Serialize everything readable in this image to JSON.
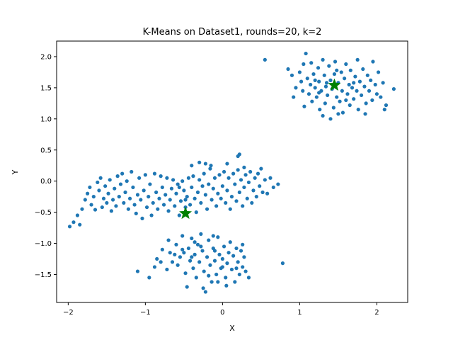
{
  "chart_data": {
    "type": "scatter",
    "title": "K-Means on Dataset1, rounds=20, k=2",
    "xlabel": "X",
    "ylabel": "Y",
    "xlim": [
      -2.15,
      2.4
    ],
    "ylim": [
      -1.95,
      2.25
    ],
    "xticks": [
      -2,
      -1,
      0,
      1,
      2
    ],
    "yticks": [
      -1.5,
      -1.0,
      -0.5,
      0.0,
      0.5,
      1.0,
      1.5,
      2.0
    ],
    "xtick_labels": [
      "−2",
      "−1",
      "0",
      "1",
      "2"
    ],
    "ytick_labels": [
      "−1.5",
      "−1.0",
      "−0.5",
      "0.0",
      "0.5",
      "1.0",
      "1.5",
      "2.0"
    ],
    "grid": false,
    "series": [
      {
        "marker": "dot",
        "color": "#1f77b4",
        "points": [
          [
            -1.98,
            -0.73
          ],
          [
            -1.93,
            -0.66
          ],
          [
            -1.88,
            -0.55
          ],
          [
            -1.85,
            -0.7
          ],
          [
            -1.82,
            -0.45
          ],
          [
            -1.78,
            -0.3
          ],
          [
            -1.75,
            -0.2
          ],
          [
            -1.72,
            -0.1
          ],
          [
            -1.7,
            -0.38
          ],
          [
            -1.67,
            -0.25
          ],
          [
            -1.65,
            -0.46
          ],
          [
            -1.62,
            -0.02
          ],
          [
            -1.6,
            -0.15
          ],
          [
            -1.58,
            0.05
          ],
          [
            -1.56,
            -0.42
          ],
          [
            -1.54,
            -0.28
          ],
          [
            -1.52,
            -0.08
          ],
          [
            -1.5,
            -0.35
          ],
          [
            -1.48,
            -0.2
          ],
          [
            -1.46,
            0.02
          ],
          [
            -1.44,
            -0.48
          ],
          [
            -1.42,
            -0.3
          ],
          [
            -1.4,
            -0.12
          ],
          [
            -1.38,
            -0.4
          ],
          [
            -1.36,
            0.08
          ],
          [
            -1.34,
            -0.25
          ],
          [
            -1.32,
            -0.05
          ],
          [
            -1.3,
            0.12
          ],
          [
            -1.28,
            -0.35
          ],
          [
            -1.26,
            -0.18
          ],
          [
            -1.24,
            0.0
          ],
          [
            -1.22,
            -0.45
          ],
          [
            -1.2,
            -0.28
          ],
          [
            -1.18,
            0.15
          ],
          [
            -1.16,
            -0.1
          ],
          [
            -1.14,
            -0.38
          ],
          [
            -1.12,
            -0.52
          ],
          [
            -1.1,
            -0.22
          ],
          [
            -1.08,
            0.05
          ],
          [
            -1.06,
            -0.3
          ],
          [
            -1.04,
            -0.6
          ],
          [
            -1.02,
            -0.15
          ],
          [
            -1.0,
            0.1
          ],
          [
            -0.98,
            -0.42
          ],
          [
            -0.96,
            -0.25
          ],
          [
            -0.94,
            -0.05
          ],
          [
            -0.92,
            -0.55
          ],
          [
            -0.9,
            -0.35
          ],
          [
            -0.88,
            0.12
          ],
          [
            -0.86,
            -0.18
          ],
          [
            -0.84,
            -0.45
          ],
          [
            -0.82,
            -0.28
          ],
          [
            -0.8,
            0.08
          ],
          [
            -0.78,
            -0.1
          ],
          [
            -0.76,
            -0.38
          ],
          [
            -0.74,
            -0.22
          ],
          [
            -0.72,
            0.05
          ],
          [
            -0.7,
            -0.48
          ],
          [
            -0.68,
            -0.3
          ],
          [
            -0.66,
            -0.12
          ],
          [
            -0.64,
            0.02
          ],
          [
            -0.62,
            -0.4
          ],
          [
            -0.6,
            -0.2
          ],
          [
            -0.58,
            -0.05
          ],
          [
            -0.56,
            -0.55
          ],
          [
            -0.54,
            -0.32
          ],
          [
            -0.52,
            0.0
          ],
          [
            -0.5,
            -0.15
          ],
          [
            -0.48,
            -0.42
          ],
          [
            -0.46,
            -0.25
          ],
          [
            -0.44,
            0.05
          ],
          [
            -0.42,
            -0.38
          ],
          [
            -0.4,
            -0.1
          ],
          [
            -0.38,
            0.08
          ],
          [
            -0.36,
            -0.28
          ],
          [
            -0.34,
            -0.5
          ],
          [
            -0.32,
            -0.18
          ],
          [
            -0.3,
            0.02
          ],
          [
            -0.28,
            -0.35
          ],
          [
            -0.26,
            -0.08
          ],
          [
            -0.24,
            0.12
          ],
          [
            -0.22,
            -0.22
          ],
          [
            -0.2,
            -0.45
          ],
          [
            -0.18,
            -0.05
          ],
          [
            -0.16,
            0.2
          ],
          [
            -0.14,
            -0.3
          ],
          [
            -0.12,
            -0.12
          ],
          [
            -0.1,
            0.05
          ],
          [
            -0.08,
            -0.4
          ],
          [
            -0.06,
            -0.2
          ],
          [
            -0.04,
            0.1
          ],
          [
            -0.02,
            -0.28
          ],
          [
            0.0,
            -0.08
          ],
          [
            0.02,
            0.15
          ],
          [
            0.04,
            -0.35
          ],
          [
            0.06,
            -0.15
          ],
          [
            0.08,
            0.05
          ],
          [
            0.1,
            -0.45
          ],
          [
            0.12,
            -0.25
          ],
          [
            0.14,
            0.12
          ],
          [
            0.16,
            -0.05
          ],
          [
            0.18,
            -0.32
          ],
          [
            0.2,
            0.18
          ],
          [
            0.22,
            -0.18
          ],
          [
            0.24,
            0.02
          ],
          [
            0.26,
            -0.4
          ],
          [
            0.28,
            -0.1
          ],
          [
            0.3,
            0.1
          ],
          [
            0.32,
            -0.28
          ],
          [
            0.34,
            -0.02
          ],
          [
            0.36,
            0.15
          ],
          [
            0.38,
            -0.35
          ],
          [
            0.4,
            -0.15
          ],
          [
            0.42,
            0.05
          ],
          [
            0.44,
            -0.25
          ],
          [
            0.46,
            0.12
          ],
          [
            0.48,
            -0.08
          ],
          [
            0.5,
            0.2
          ],
          [
            0.52,
            -0.18
          ],
          [
            0.55,
            0.02
          ],
          [
            0.58,
            -0.2
          ],
          [
            0.62,
            0.05
          ],
          [
            0.66,
            -0.1
          ],
          [
            0.72,
            -0.05
          ],
          [
            0.78,
            -1.32
          ],
          [
            -0.3,
            0.3
          ],
          [
            -0.22,
            0.28
          ],
          [
            -0.15,
            0.25
          ],
          [
            0.2,
            0.4
          ],
          [
            0.22,
            0.43
          ],
          [
            -0.4,
            0.25
          ],
          [
            0.06,
            0.28
          ],
          [
            0.28,
            0.22
          ],
          [
            -0.48,
            -0.3
          ],
          [
            -0.56,
            -0.1
          ],
          [
            -1.1,
            -1.45
          ],
          [
            -0.95,
            -1.55
          ],
          [
            -0.88,
            -1.38
          ],
          [
            -0.85,
            -1.25
          ],
          [
            -0.78,
            -1.1
          ],
          [
            -0.72,
            -1.42
          ],
          [
            -0.7,
            -0.95
          ],
          [
            -0.65,
            -1.3
          ],
          [
            -0.62,
            -1.18
          ],
          [
            -0.6,
            -1.02
          ],
          [
            -0.58,
            -1.35
          ],
          [
            -0.55,
            -1.22
          ],
          [
            -0.52,
            -0.88
          ],
          [
            -0.5,
            -1.15
          ],
          [
            -0.48,
            -1.48
          ],
          [
            -0.46,
            -1.7
          ],
          [
            -0.44,
            -1.08
          ],
          [
            -0.42,
            -1.28
          ],
          [
            -0.4,
            -0.92
          ],
          [
            -0.38,
            -1.4
          ],
          [
            -0.36,
            -1.18
          ],
          [
            -0.34,
            -1.55
          ],
          [
            -0.32,
            -1.02
          ],
          [
            -0.3,
            -1.3
          ],
          [
            -0.28,
            -0.85
          ],
          [
            -0.26,
            -1.12
          ],
          [
            -0.24,
            -1.45
          ],
          [
            -0.22,
            -1.78
          ],
          [
            -0.2,
            -1.22
          ],
          [
            -0.18,
            -0.95
          ],
          [
            -0.16,
            -1.35
          ],
          [
            -0.14,
            -1.62
          ],
          [
            -0.12,
            -1.08
          ],
          [
            -0.1,
            -1.28
          ],
          [
            -0.08,
            -1.5
          ],
          [
            -0.06,
            -0.9
          ],
          [
            -0.04,
            -1.18
          ],
          [
            -0.02,
            -1.4
          ],
          [
            0.0,
            -1.25
          ],
          [
            0.02,
            -1.05
          ],
          [
            0.04,
            -1.55
          ],
          [
            0.06,
            -1.32
          ],
          [
            0.08,
            -1.15
          ],
          [
            0.1,
            -0.98
          ],
          [
            0.12,
            -1.42
          ],
          [
            0.14,
            -1.2
          ],
          [
            0.16,
            -1.62
          ],
          [
            0.18,
            -1.08
          ],
          [
            0.2,
            -1.3
          ],
          [
            0.22,
            -1.5
          ],
          [
            0.24,
            -1.12
          ],
          [
            0.26,
            -1.38
          ],
          [
            0.28,
            -1.22
          ],
          [
            0.3,
            -1.45
          ],
          [
            0.34,
            -1.55
          ],
          [
            -0.8,
            -1.3
          ],
          [
            -0.68,
            -1.15
          ],
          [
            -0.36,
            -0.98
          ],
          [
            -0.12,
            -0.88
          ],
          [
            0.05,
            -1.68
          ],
          [
            -0.25,
            -1.72
          ],
          [
            -0.18,
            -1.52
          ],
          [
            -0.06,
            -1.62
          ],
          [
            0.18,
            -1.4
          ],
          [
            0.26,
            -1.02
          ],
          [
            -0.52,
            -1.1
          ],
          [
            -0.4,
            -1.22
          ],
          [
            -0.28,
            -1.05
          ],
          [
            -0.1,
            -1.12
          ],
          [
            0.0,
            -1.38
          ],
          [
            0.55,
            1.95
          ],
          [
            0.85,
            1.8
          ],
          [
            0.9,
            1.7
          ],
          [
            0.92,
            1.35
          ],
          [
            0.95,
            1.5
          ],
          [
            1.0,
            1.75
          ],
          [
            1.02,
            1.6
          ],
          [
            1.04,
            1.45
          ],
          [
            1.05,
            1.88
          ],
          [
            1.06,
            1.2
          ],
          [
            1.08,
            2.05
          ],
          [
            1.1,
            1.65
          ],
          [
            1.12,
            1.4
          ],
          [
            1.14,
            1.55
          ],
          [
            1.15,
            1.9
          ],
          [
            1.16,
            1.28
          ],
          [
            1.18,
            1.72
          ],
          [
            1.2,
            1.5
          ],
          [
            1.22,
            1.35
          ],
          [
            1.24,
            1.82
          ],
          [
            1.25,
            1.6
          ],
          [
            1.26,
            1.15
          ],
          [
            1.28,
            1.45
          ],
          [
            1.3,
            1.95
          ],
          [
            1.32,
            1.7
          ],
          [
            1.33,
            1.25
          ],
          [
            1.34,
            1.52
          ],
          [
            1.36,
            1.38
          ],
          [
            1.38,
            1.85
          ],
          [
            1.4,
            1.62
          ],
          [
            1.4,
            1.0
          ],
          [
            1.42,
            1.48
          ],
          [
            1.44,
            1.18
          ],
          [
            1.45,
            1.72
          ],
          [
            1.46,
            1.92
          ],
          [
            1.48,
            1.35
          ],
          [
            1.5,
            1.58
          ],
          [
            1.52,
            1.28
          ],
          [
            1.54,
            1.75
          ],
          [
            1.55,
            1.45
          ],
          [
            1.56,
            1.1
          ],
          [
            1.58,
            1.65
          ],
          [
            1.6,
            1.88
          ],
          [
            1.62,
            1.4
          ],
          [
            1.64,
            1.55
          ],
          [
            1.65,
            1.22
          ],
          [
            1.66,
            1.78
          ],
          [
            1.68,
            1.5
          ],
          [
            1.7,
            1.32
          ],
          [
            1.72,
            1.68
          ],
          [
            1.74,
            1.45
          ],
          [
            1.75,
            1.95
          ],
          [
            1.76,
            1.15
          ],
          [
            1.78,
            1.6
          ],
          [
            1.8,
            1.38
          ],
          [
            1.82,
            1.8
          ],
          [
            1.84,
            1.52
          ],
          [
            1.86,
            1.25
          ],
          [
            1.88,
            1.7
          ],
          [
            1.9,
            1.45
          ],
          [
            1.92,
            1.62
          ],
          [
            1.94,
            1.3
          ],
          [
            1.95,
            1.92
          ],
          [
            1.98,
            1.55
          ],
          [
            2.0,
            1.4
          ],
          [
            2.02,
            1.75
          ],
          [
            2.05,
            1.35
          ],
          [
            2.08,
            1.58
          ],
          [
            2.1,
            1.15
          ],
          [
            2.12,
            1.22
          ],
          [
            2.22,
            1.48
          ],
          [
            1.3,
            1.05
          ],
          [
            1.5,
            1.08
          ],
          [
            1.85,
            1.08
          ],
          [
            1.2,
            1.62
          ],
          [
            1.35,
            1.58
          ],
          [
            1.6,
            1.3
          ],
          [
            1.7,
            1.58
          ],
          [
            1.48,
            1.78
          ],
          [
            1.25,
            1.42
          ]
        ]
      },
      {
        "name": "",
        "marker": "star",
        "color": "#008000",
        "points": [
          [
            -0.48,
            -0.52
          ],
          [
            1.45,
            1.54
          ]
        ]
      }
    ]
  }
}
